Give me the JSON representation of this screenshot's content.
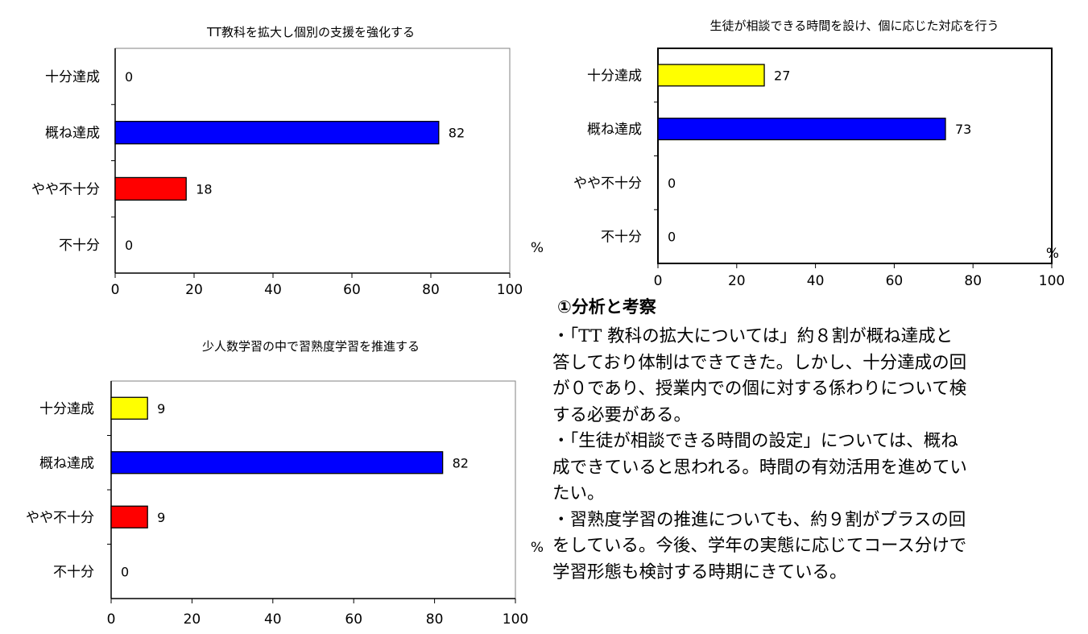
{
  "chart_data": [
    {
      "type": "bar",
      "orientation": "horizontal",
      "title": "TT教科を拡大し個別の支援を強化する",
      "categories": [
        "十分達成",
        "概ね達成",
        "やや不十分",
        "不十分"
      ],
      "values": [
        0,
        82,
        18,
        0
      ],
      "colors": [
        "#ffff00",
        "#0000ff",
        "#ff0000",
        "#ffffff"
      ],
      "xlim": [
        0,
        100
      ],
      "xticks": [
        0,
        20,
        40,
        60,
        80,
        100
      ],
      "unit": "%",
      "grid": false
    },
    {
      "type": "bar",
      "orientation": "horizontal",
      "title": "生徒が相談できる時間を設け、個に応じた対応を行う",
      "categories": [
        "十分達成",
        "概ね達成",
        "やや不十分",
        "不十分"
      ],
      "values": [
        27,
        73,
        0,
        0
      ],
      "colors": [
        "#ffff00",
        "#0000ff",
        "#ff0000",
        "#ffffff"
      ],
      "xlim": [
        0,
        100
      ],
      "xticks": [
        0,
        20,
        40,
        60,
        80,
        100
      ],
      "unit": "%",
      "grid": false
    },
    {
      "type": "bar",
      "orientation": "horizontal",
      "title": "少人数学習の中で習熟度学習を推進する",
      "categories": [
        "十分達成",
        "概ね達成",
        "やや不十分",
        "不十分"
      ],
      "values": [
        9,
        82,
        9,
        0
      ],
      "colors": [
        "#ffff00",
        "#0000ff",
        "#ff0000",
        "#ffffff"
      ],
      "xlim": [
        0,
        100
      ],
      "xticks": [
        0,
        20,
        40,
        60,
        80,
        100
      ],
      "unit": "%",
      "grid": false
    }
  ],
  "analysis": {
    "heading": "①分析と考察",
    "lines": [
      "・「TT 教科の拡大については」約８割が概ね達成と",
      "答しており体制はできてきた。しかし、十分達成の回",
      "が０であり、授業内での個に対する係わりについて検",
      "する必要がある。",
      "・「生徒が相談できる時間の設定」については、概ね",
      "成できていると思われる。時間の有効活用を進めてい",
      "たい。",
      "・習熟度学習の推進についても、約９割がプラスの回",
      "をしている。今後、学年の実態に応じてコース分けで",
      "学習形態も検討する時期にきている。"
    ]
  }
}
